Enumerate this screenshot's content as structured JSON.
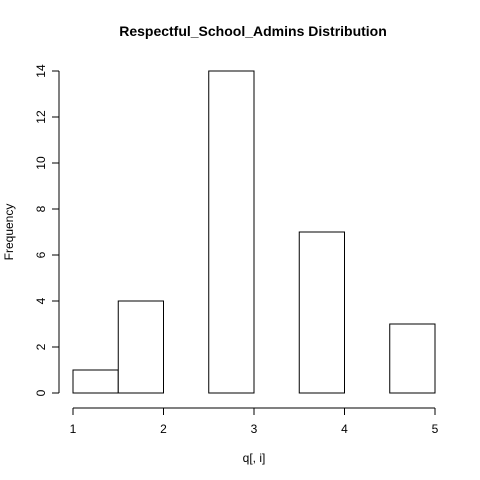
{
  "chart_data": {
    "type": "bar",
    "title": "Respectful_School_Admins Distribution",
    "xlabel": "q[, i]",
    "ylabel": "Frequency",
    "bins": [
      {
        "x0": 1.0,
        "x1": 1.5,
        "count": 1
      },
      {
        "x0": 1.5,
        "x1": 2.0,
        "count": 4
      },
      {
        "x0": 2.0,
        "x1": 2.5,
        "count": 0
      },
      {
        "x0": 2.5,
        "x1": 3.0,
        "count": 14
      },
      {
        "x0": 3.0,
        "x1": 3.5,
        "count": 0
      },
      {
        "x0": 3.5,
        "x1": 4.0,
        "count": 7
      },
      {
        "x0": 4.0,
        "x1": 4.5,
        "count": 0
      },
      {
        "x0": 4.5,
        "x1": 5.0,
        "count": 3
      }
    ],
    "xlim": [
      1,
      5
    ],
    "ylim": [
      0,
      14
    ],
    "x_ticks": [
      1,
      2,
      3,
      4,
      5
    ],
    "y_ticks": [
      0,
      2,
      4,
      6,
      8,
      10,
      12,
      14
    ],
    "grid": false,
    "bar_fill": "#ffffff",
    "bar_stroke": "#000000"
  }
}
